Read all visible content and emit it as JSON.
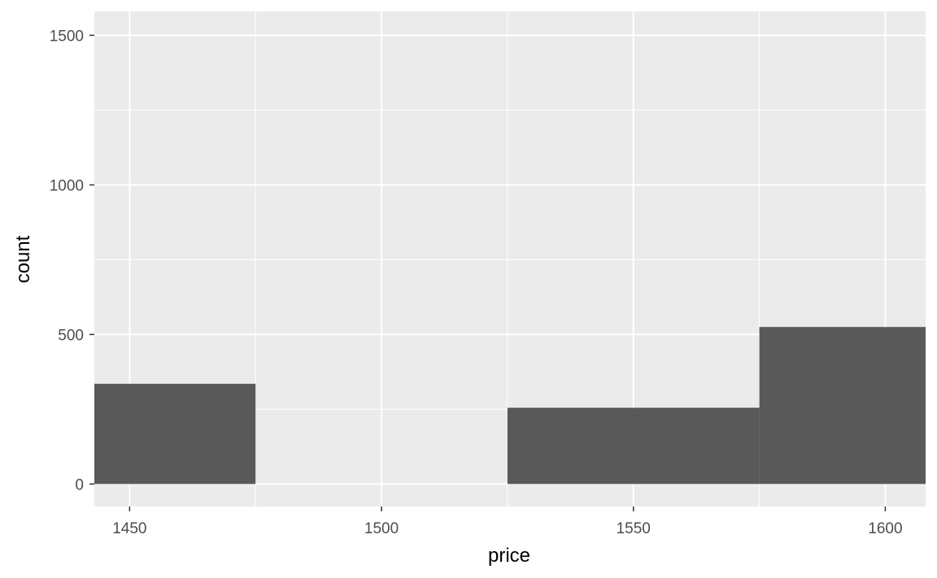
{
  "chart_data": {
    "type": "bar",
    "subtype": "histogram",
    "title": "",
    "xlabel": "price",
    "ylabel": "count",
    "bins": [
      {
        "x_start": 1425,
        "x_end": 1475,
        "count": 335
      },
      {
        "x_start": 1475,
        "x_end": 1525,
        "count": 0
      },
      {
        "x_start": 1525,
        "x_end": 1575,
        "count": 255
      },
      {
        "x_start": 1575,
        "x_end": 1625,
        "count": 525
      }
    ],
    "xlim": [
      1443,
      1608
    ],
    "ylim": [
      -75,
      1580
    ],
    "x_ticks": [
      1450,
      1500,
      1550,
      1600
    ],
    "x_tick_labels": [
      "1450",
      "1500",
      "1550",
      "1600"
    ],
    "x_minor_ticks": [
      1475,
      1525,
      1575
    ],
    "y_ticks": [
      0,
      500,
      1000,
      1500
    ],
    "y_tick_labels": [
      "0",
      "500",
      "1000",
      "1500"
    ],
    "y_minor_ticks": [
      250,
      750,
      1250
    ],
    "grid": true,
    "legend": "none",
    "colors": {
      "panel_background": "#ebebeb",
      "grid_line": "#ffffff",
      "bar_fill": "#595959",
      "tick": "#333333",
      "tick_label": "#4d4d4d",
      "axis_title": "#000000"
    }
  }
}
